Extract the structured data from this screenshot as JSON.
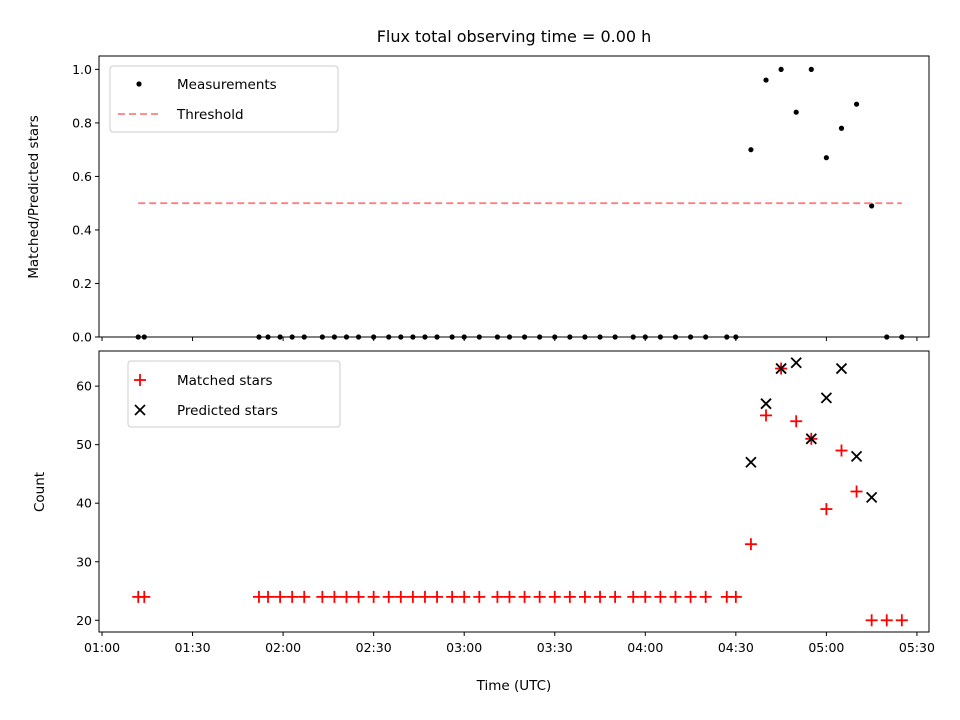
{
  "chart_data": {
    "type": "scatter",
    "title": "Flux total observing time = 0.00 h",
    "colors": {
      "measurements": "#000000",
      "threshold": "#ff7f7f",
      "matched": "#ff0000",
      "predicted": "#000000"
    },
    "xlabel": "Time (UTC)",
    "x_ticks": [
      "01:00",
      "01:30",
      "02:00",
      "02:30",
      "03:00",
      "03:30",
      "04:00",
      "04:30",
      "05:00",
      "05:30"
    ],
    "xlim": [
      "00:59",
      "05:34"
    ],
    "panels": [
      {
        "ylabel": "Matched/Predicted stars",
        "ylim": [
          0,
          1.05
        ],
        "y_ticks": [
          "0.0",
          "0.2",
          "0.4",
          "0.6",
          "0.8",
          "1.0"
        ],
        "y_tick_values": [
          0,
          0.2,
          0.4,
          0.6,
          0.8,
          1.0
        ],
        "legend_position": "upper left",
        "series": [
          {
            "name": "Measurements",
            "marker": "dot",
            "points": [
              [
                "01:12",
                0
              ],
              [
                "01:14",
                0
              ],
              [
                "01:52",
                0
              ],
              [
                "01:55",
                0
              ],
              [
                "01:59",
                0
              ],
              [
                "02:03",
                0
              ],
              [
                "02:07",
                0
              ],
              [
                "02:13",
                0
              ],
              [
                "02:17",
                0
              ],
              [
                "02:21",
                0
              ],
              [
                "02:25",
                0
              ],
              [
                "02:30",
                0
              ],
              [
                "02:35",
                0
              ],
              [
                "02:39",
                0
              ],
              [
                "02:43",
                0
              ],
              [
                "02:47",
                0
              ],
              [
                "02:51",
                0
              ],
              [
                "02:56",
                0
              ],
              [
                "03:00",
                0
              ],
              [
                "03:05",
                0
              ],
              [
                "03:11",
                0
              ],
              [
                "03:15",
                0
              ],
              [
                "03:20",
                0
              ],
              [
                "03:25",
                0
              ],
              [
                "03:30",
                0
              ],
              [
                "03:35",
                0
              ],
              [
                "03:40",
                0
              ],
              [
                "03:45",
                0
              ],
              [
                "03:50",
                0
              ],
              [
                "03:56",
                0
              ],
              [
                "04:00",
                0
              ],
              [
                "04:05",
                0
              ],
              [
                "04:10",
                0
              ],
              [
                "04:15",
                0
              ],
              [
                "04:20",
                0
              ],
              [
                "04:27",
                0
              ],
              [
                "04:30",
                0
              ],
              [
                "04:35",
                0.7
              ],
              [
                "04:40",
                0.96
              ],
              [
                "04:45",
                1.0
              ],
              [
                "04:50",
                0.84
              ],
              [
                "04:55",
                1.0
              ],
              [
                "05:00",
                0.67
              ],
              [
                "05:05",
                0.78
              ],
              [
                "05:10",
                0.87
              ],
              [
                "05:15",
                0.49
              ],
              [
                "05:20",
                0
              ],
              [
                "05:25",
                0
              ]
            ]
          },
          {
            "name": "Threshold",
            "marker": "dashed-line",
            "points": [
              [
                "01:12",
                0.5
              ],
              [
                "05:25",
                0.5
              ]
            ]
          }
        ]
      },
      {
        "ylabel": "Count",
        "ylim": [
          18,
          66
        ],
        "y_ticks": [
          "20",
          "30",
          "40",
          "50",
          "60"
        ],
        "y_tick_values": [
          20,
          30,
          40,
          50,
          60
        ],
        "legend_position": "upper left",
        "series": [
          {
            "name": "Matched stars",
            "marker": "plus",
            "points": [
              [
                "01:12",
                24
              ],
              [
                "01:14",
                24
              ],
              [
                "01:52",
                24
              ],
              [
                "01:55",
                24
              ],
              [
                "01:59",
                24
              ],
              [
                "02:03",
                24
              ],
              [
                "02:07",
                24
              ],
              [
                "02:13",
                24
              ],
              [
                "02:17",
                24
              ],
              [
                "02:21",
                24
              ],
              [
                "02:25",
                24
              ],
              [
                "02:30",
                24
              ],
              [
                "02:35",
                24
              ],
              [
                "02:39",
                24
              ],
              [
                "02:43",
                24
              ],
              [
                "02:47",
                24
              ],
              [
                "02:51",
                24
              ],
              [
                "02:56",
                24
              ],
              [
                "03:00",
                24
              ],
              [
                "03:05",
                24
              ],
              [
                "03:11",
                24
              ],
              [
                "03:15",
                24
              ],
              [
                "03:20",
                24
              ],
              [
                "03:25",
                24
              ],
              [
                "03:30",
                24
              ],
              [
                "03:35",
                24
              ],
              [
                "03:40",
                24
              ],
              [
                "03:45",
                24
              ],
              [
                "03:50",
                24
              ],
              [
                "03:56",
                24
              ],
              [
                "04:00",
                24
              ],
              [
                "04:05",
                24
              ],
              [
                "04:10",
                24
              ],
              [
                "04:15",
                24
              ],
              [
                "04:20",
                24
              ],
              [
                "04:27",
                24
              ],
              [
                "04:30",
                24
              ],
              [
                "04:35",
                33
              ],
              [
                "04:40",
                55
              ],
              [
                "04:45",
                63
              ],
              [
                "04:50",
                54
              ],
              [
                "04:55",
                51
              ],
              [
                "05:00",
                39
              ],
              [
                "05:05",
                49
              ],
              [
                "05:10",
                42
              ],
              [
                "05:15",
                20
              ],
              [
                "05:20",
                20
              ],
              [
                "05:25",
                20
              ]
            ]
          },
          {
            "name": "Predicted stars",
            "marker": "x",
            "points": [
              [
                "04:35",
                47
              ],
              [
                "04:40",
                57
              ],
              [
                "04:45",
                63
              ],
              [
                "04:50",
                64
              ],
              [
                "04:55",
                51
              ],
              [
                "05:00",
                58
              ],
              [
                "05:05",
                63
              ],
              [
                "05:10",
                48
              ],
              [
                "05:15",
                41
              ]
            ]
          }
        ]
      }
    ]
  }
}
